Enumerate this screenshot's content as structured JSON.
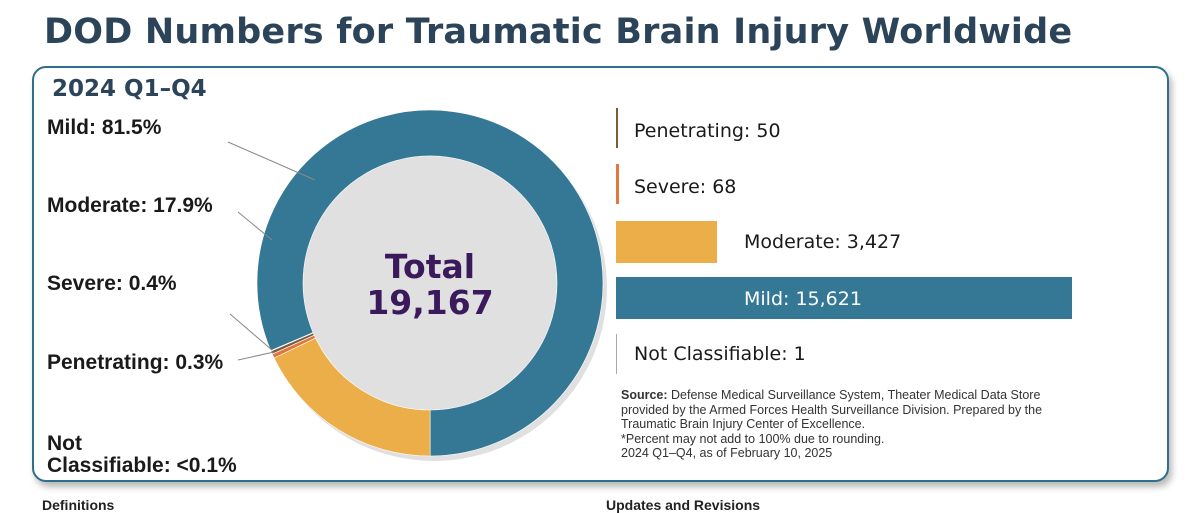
{
  "title": "DOD Numbers for Traumatic Brain Injury Worldwide",
  "period": "2024 Q1–Q4",
  "total": {
    "label": "Total",
    "value": "19,167"
  },
  "pie_labels": {
    "mild": "Mild: 81.5%",
    "moderate": "Moderate: 17.9%",
    "severe": "Severe: 0.4%",
    "penetrating": "Penetrating: 0.3%",
    "not_classifiable_line1": "Not",
    "not_classifiable_line2": "Classifiable: <0.1%"
  },
  "bar_labels": {
    "penetrating": "Penetrating: 50",
    "severe": "Severe: 68",
    "moderate": "Moderate: 3,427",
    "mild": "Mild: 15,621",
    "not_classifiable": "Not Classifiable: 1"
  },
  "source": {
    "label": "Source:",
    "text": "Defense Medical Surveillance System, Theater Medical Data Store provided by the Armed Forces Health Surveillance Division. Prepared by the Traumatic Brain Injury Center of Excellence.",
    "note": "*Percent may not add to 100% due to rounding.",
    "date": "2024 Q1–Q4, as of February 10, 2025"
  },
  "footer": {
    "definitions": "Definitions",
    "updates": "Updates and Revisions"
  },
  "colors": {
    "mild": "#357896",
    "moderate": "#ebae48",
    "severe": "#e0783c",
    "penetrating": "#7a5c3c",
    "not_classifiable": "#a8a8a8",
    "title": "#2c4459",
    "total": "#3b1a5c"
  },
  "chart_data": [
    {
      "type": "pie",
      "title": "",
      "categories": [
        "Mild",
        "Moderate",
        "Severe",
        "Penetrating",
        "Not Classifiable"
      ],
      "values": [
        81.5,
        17.9,
        0.4,
        0.3,
        0.05
      ],
      "center_label": "Total 19,167"
    },
    {
      "type": "bar",
      "orientation": "horizontal",
      "title": "",
      "categories": [
        "Penetrating",
        "Severe",
        "Moderate",
        "Mild",
        "Not Classifiable"
      ],
      "values": [
        50,
        68,
        3427,
        15621,
        1
      ]
    }
  ]
}
